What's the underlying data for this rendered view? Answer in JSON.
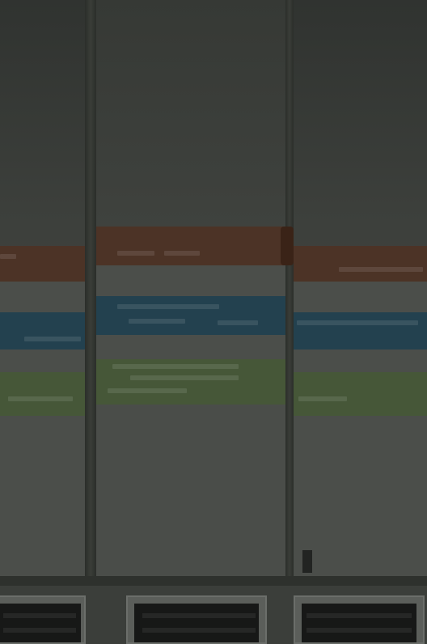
{
  "scene": {
    "colors": {
      "orange_band": "#4c3326",
      "blue_band": "#23414f",
      "green_band": "#465738",
      "grey_band": "#4b4e4a",
      "background": "#3a3d39",
      "tray": "#5b5e5a",
      "tray_inner": "#171817"
    },
    "panels": [
      "left-panel",
      "center-panel",
      "right-panel"
    ],
    "trays": [
      "left-tray",
      "center-tray",
      "right-tray"
    ]
  }
}
